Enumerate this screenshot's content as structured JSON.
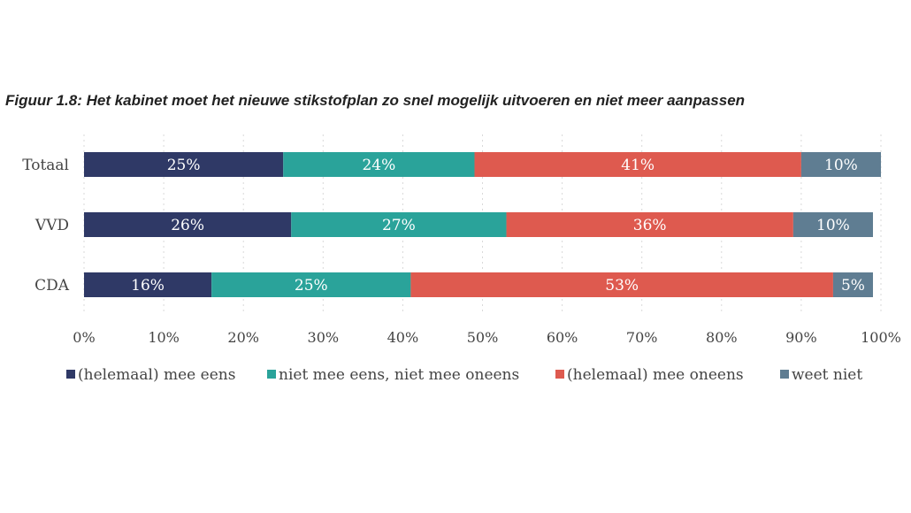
{
  "chart_data": {
    "type": "bar",
    "orientation": "horizontal",
    "stacked": true,
    "title": "Figuur 1.8: Het kabinet moet het nieuwe stikstofplan zo snel mogelijk uitvoeren en niet meer aanpassen",
    "categories": [
      "Totaal",
      "VVD",
      "CDA"
    ],
    "series": [
      {
        "name": "(helemaal) mee eens",
        "color": "#2f3966",
        "values": [
          25,
          26,
          16
        ],
        "labels": [
          "25%",
          "26%",
          "16%"
        ]
      },
      {
        "name": "niet mee eens, niet mee oneens",
        "color": "#2aa39a",
        "values": [
          24,
          27,
          25
        ],
        "labels": [
          "24%",
          "27%",
          "25%"
        ]
      },
      {
        "name": "(helemaal) mee oneens",
        "color": "#de5a4f",
        "values": [
          41,
          36,
          53
        ],
        "labels": [
          "41%",
          "36%",
          "53%"
        ]
      },
      {
        "name": "weet niet",
        "color": "#5f7d92",
        "values": [
          10,
          10,
          5
        ],
        "labels": [
          "10%",
          "10%",
          "5%"
        ]
      }
    ],
    "xlim": [
      0,
      100
    ],
    "xticks": [
      "0%",
      "10%",
      "20%",
      "30%",
      "40%",
      "50%",
      "60%",
      "70%",
      "80%",
      "90%",
      "100%"
    ],
    "gridlines": "vertical",
    "legend_position": "bottom"
  }
}
